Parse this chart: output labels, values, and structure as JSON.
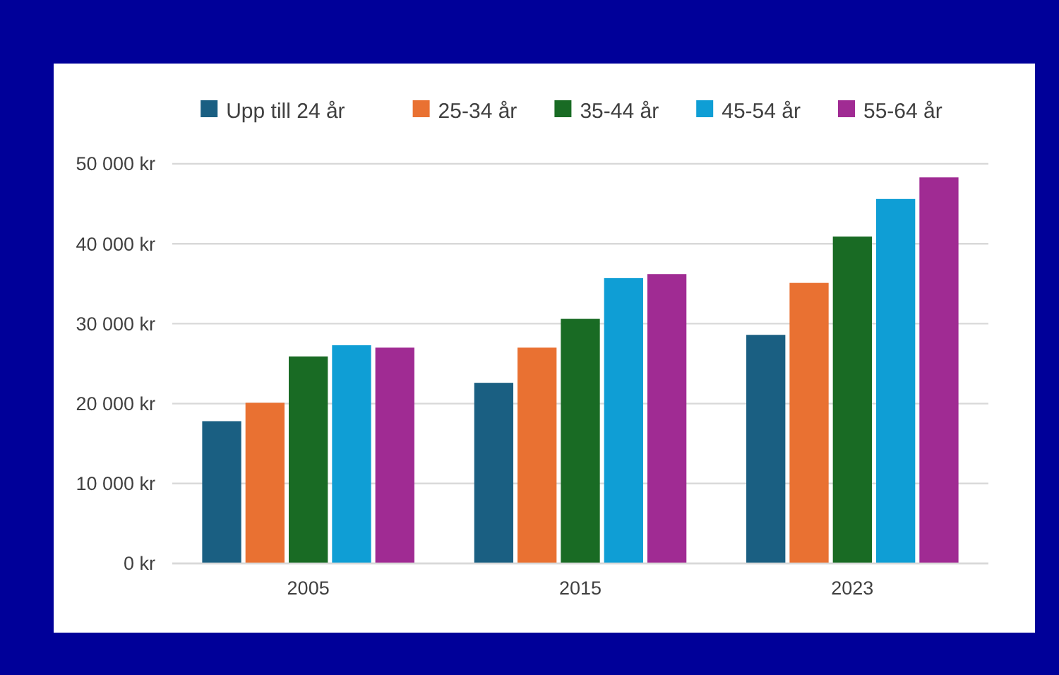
{
  "chart_data": {
    "type": "bar",
    "categories": [
      "2005",
      "2015",
      "2023"
    ],
    "series": [
      {
        "name": "Upp till 24 år",
        "color": "#1a5f82",
        "values": [
          17800,
          22600,
          28600
        ]
      },
      {
        "name": "25-34 år",
        "color": "#e97132",
        "values": [
          20100,
          27000,
          35100
        ]
      },
      {
        "name": "35-44 år",
        "color": "#196b24",
        "values": [
          25900,
          30600,
          40900
        ]
      },
      {
        "name": "45-54 år",
        "color": "#0f9ed5",
        "values": [
          27300,
          35700,
          45600
        ]
      },
      {
        "name": "55-64 år",
        "color": "#a02b93",
        "values": [
          27000,
          36200,
          48300
        ]
      }
    ],
    "ylim": [
      0,
      50000
    ],
    "yticks": [
      {
        "value": 0,
        "label": "0 kr"
      },
      {
        "value": 10000,
        "label": "10 000 kr"
      },
      {
        "value": 20000,
        "label": "20 000 kr"
      },
      {
        "value": 30000,
        "label": "30 000 kr"
      },
      {
        "value": 40000,
        "label": "40 000 kr"
      },
      {
        "value": 50000,
        "label": "50 000 kr"
      }
    ],
    "grid": "y",
    "legend": "top"
  }
}
